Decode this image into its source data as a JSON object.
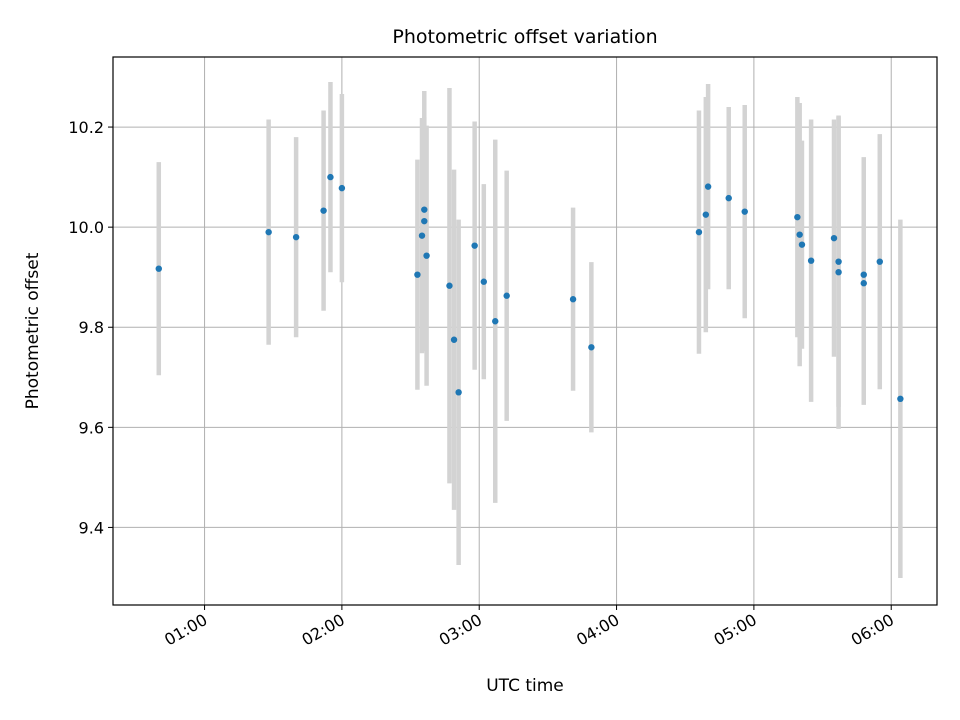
{
  "chart_data": {
    "type": "scatter",
    "title": "Photometric offset variation",
    "xlabel": "UTC time",
    "ylabel": "Photometric offset",
    "xlim": [
      "00:20",
      "06:20"
    ],
    "ylim": [
      9.245,
      10.34
    ],
    "xticks": [
      "01:00",
      "02:00",
      "03:00",
      "04:00",
      "05:00",
      "06:00"
    ],
    "yticks": [
      9.4,
      9.6,
      9.8,
      10.0,
      10.2
    ],
    "grid": true,
    "marker_color": "#1f77b4",
    "errorbar_color": "#d3d3d3",
    "points": [
      {
        "t": "00:40",
        "y": 9.917,
        "err": 0.213
      },
      {
        "t": "01:28",
        "y": 9.99,
        "err": 0.225
      },
      {
        "t": "01:40",
        "y": 9.98,
        "err": 0.2
      },
      {
        "t": "01:52",
        "y": 10.033,
        "err": 0.2
      },
      {
        "t": "01:55",
        "y": 10.1,
        "err": 0.19
      },
      {
        "t": "02:00",
        "y": 10.078,
        "err": 0.188
      },
      {
        "t": "02:33",
        "y": 9.905,
        "err": 0.23
      },
      {
        "t": "02:35",
        "y": 9.983,
        "err": 0.235
      },
      {
        "t": "02:36",
        "y": 10.035,
        "err": 0.185
      },
      {
        "t": "02:36",
        "y": 10.012,
        "err": 0.26
      },
      {
        "t": "02:37",
        "y": 9.943,
        "err": 0.26
      },
      {
        "t": "02:47",
        "y": 9.883,
        "err": 0.395
      },
      {
        "t": "02:49",
        "y": 9.775,
        "err": 0.34
      },
      {
        "t": "02:51",
        "y": 9.67,
        "err": 0.345
      },
      {
        "t": "02:58",
        "y": 9.963,
        "err": 0.248
      },
      {
        "t": "03:02",
        "y": 9.891,
        "err": 0.195
      },
      {
        "t": "03:07",
        "y": 9.812,
        "err": 0.363
      },
      {
        "t": "03:12",
        "y": 9.863,
        "err": 0.25
      },
      {
        "t": "03:41",
        "y": 9.856,
        "err": 0.183
      },
      {
        "t": "03:49",
        "y": 9.76,
        "err": 0.17
      },
      {
        "t": "04:36",
        "y": 9.99,
        "err": 0.243
      },
      {
        "t": "04:39",
        "y": 10.025,
        "err": 0.235
      },
      {
        "t": "04:40",
        "y": 10.081,
        "err": 0.205
      },
      {
        "t": "04:49",
        "y": 10.058,
        "err": 0.182
      },
      {
        "t": "04:56",
        "y": 10.031,
        "err": 0.213
      },
      {
        "t": "05:19",
        "y": 10.02,
        "err": 0.24
      },
      {
        "t": "05:20",
        "y": 9.985,
        "err": 0.263
      },
      {
        "t": "05:21",
        "y": 9.965,
        "err": 0.208
      },
      {
        "t": "05:25",
        "y": 9.933,
        "err": 0.282
      },
      {
        "t": "05:35",
        "y": 9.978,
        "err": 0.237
      },
      {
        "t": "05:37",
        "y": 9.91,
        "err": 0.313
      },
      {
        "t": "05:37",
        "y": 9.931,
        "err": 0.29
      },
      {
        "t": "05:48",
        "y": 9.905,
        "err": 0.235
      },
      {
        "t": "05:48",
        "y": 9.888,
        "err": 0.243
      },
      {
        "t": "05:55",
        "y": 9.931,
        "err": 0.255
      },
      {
        "t": "06:04",
        "y": 9.657,
        "err": 0.358
      }
    ]
  }
}
